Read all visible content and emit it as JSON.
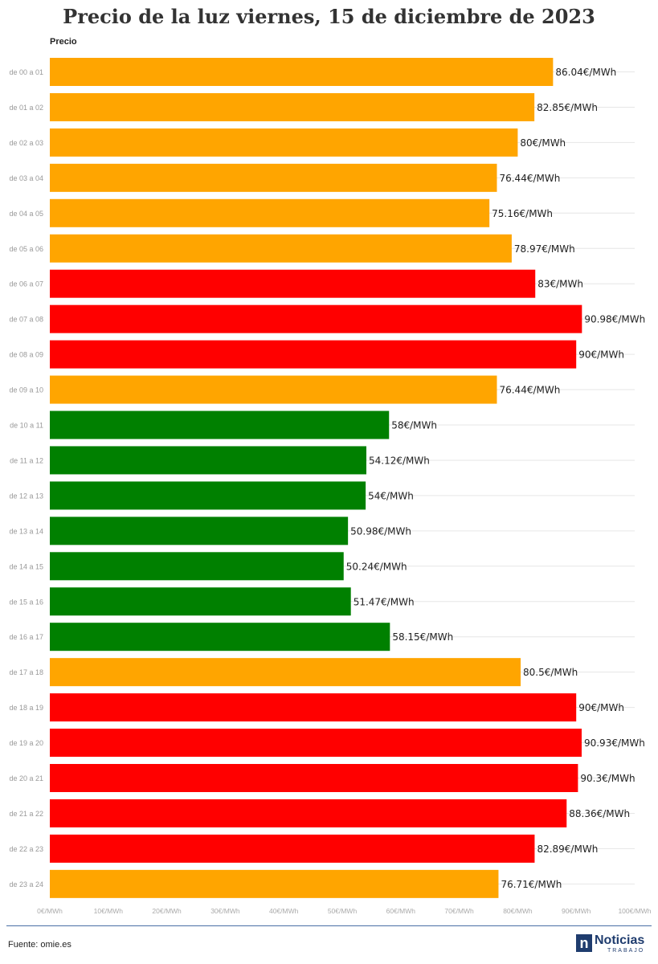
{
  "chart_data": {
    "type": "bar",
    "orientation": "horizontal",
    "title": "Precio de la luz viernes, 15 de diciembre de 2023",
    "series_name": "Precio",
    "categories": [
      "de 00 a 01",
      "de 01 a 02",
      "de 02 a 03",
      "de 03 a 04",
      "de 04 a 05",
      "de 05 a 06",
      "de 06 a 07",
      "de 07 a 08",
      "de 08 a 09",
      "de 09 a 10",
      "de 10 a 11",
      "de 11 a 12",
      "de 12 a 13",
      "de 13 a 14",
      "de 14 a 15",
      "de 15 a 16",
      "de 16 a 17",
      "de 17 a 18",
      "de 18 a 19",
      "de 19 a 20",
      "de 20 a 21",
      "de 21 a 22",
      "de 22 a 23",
      "de 23 a 24"
    ],
    "values": [
      86.04,
      82.85,
      80,
      76.44,
      75.16,
      78.97,
      83,
      90.98,
      90,
      76.44,
      58,
      54.12,
      54,
      50.98,
      50.24,
      51.47,
      58.15,
      80.5,
      90,
      90.93,
      90.3,
      88.36,
      82.89,
      76.71
    ],
    "value_labels": [
      "86.04€/MWh",
      "82.85€/MWh",
      "80€/MWh",
      "76.44€/MWh",
      "75.16€/MWh",
      "78.97€/MWh",
      "83€/MWh",
      "90.98€/MWh",
      "90€/MWh",
      "76.44€/MWh",
      "58€/MWh",
      "54.12€/MWh",
      "54€/MWh",
      "50.98€/MWh",
      "50.24€/MWh",
      "51.47€/MWh",
      "58.15€/MWh",
      "80.5€/MWh",
      "90€/MWh",
      "90.93€/MWh",
      "90.3€/MWh",
      "88.36€/MWh",
      "82.89€/MWh",
      "76.71€/MWh"
    ],
    "bar_colors": [
      "#ffa500",
      "#ffa500",
      "#ffa500",
      "#ffa500",
      "#ffa500",
      "#ffa500",
      "#ff0000",
      "#ff0000",
      "#ff0000",
      "#ffa500",
      "#008000",
      "#008000",
      "#008000",
      "#008000",
      "#008000",
      "#008000",
      "#008000",
      "#ffa500",
      "#ff0000",
      "#ff0000",
      "#ff0000",
      "#ff0000",
      "#ff0000",
      "#ffa500"
    ],
    "xlim": [
      0,
      100
    ],
    "x_ticks": [
      0,
      10,
      20,
      30,
      40,
      50,
      60,
      70,
      80,
      90,
      100
    ],
    "x_tick_labels": [
      "0€/MWh",
      "10€/MWh",
      "20€/MWh",
      "30€/MWh",
      "40€/MWh",
      "50€/MWh",
      "60€/MWh",
      "70€/MWh",
      "80€/MWh",
      "90€/MWh",
      "100€/MWh"
    ],
    "grid": true,
    "legend": "none"
  },
  "footer": {
    "source": "Fuente: omie.es",
    "logo_letter": "n",
    "logo_name": "Noticias",
    "logo_sub": "TRABAJO"
  },
  "colors": {
    "orange": "#ffa500",
    "red": "#ff0000",
    "green": "#008000",
    "brand": "#1f3c6e"
  }
}
